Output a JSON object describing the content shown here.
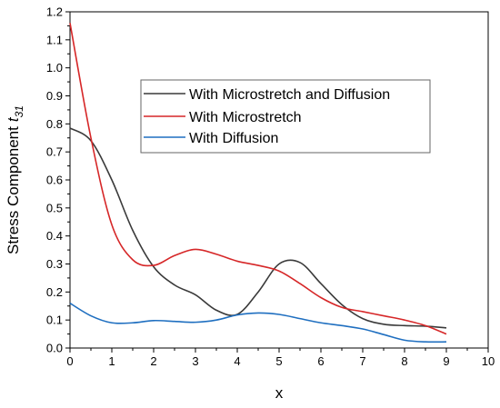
{
  "chart_data": {
    "type": "line",
    "title": "",
    "xlabel": "x",
    "ylabel": "Stress Component",
    "ylabel_symbol": "t",
    "ylabel_subscript": "31",
    "xlim": [
      0,
      10
    ],
    "ylim": [
      0,
      1.2
    ],
    "xticks": [
      "0",
      "1",
      "2",
      "3",
      "4",
      "5",
      "6",
      "7",
      "8",
      "9",
      "10"
    ],
    "yticks": [
      "0.0",
      "0.1",
      "0.2",
      "0.3",
      "0.4",
      "0.5",
      "0.6",
      "0.7",
      "0.8",
      "0.9",
      "1.0",
      "1.1",
      "1.2"
    ],
    "grid": false,
    "legend_position": "upper-right-center",
    "series": [
      {
        "name": "With Microstretch and Diffusion",
        "color": "#3a3a3a",
        "x": [
          0,
          0.5,
          1,
          1.5,
          2,
          2.5,
          3,
          3.5,
          4,
          4.5,
          5,
          5.5,
          6,
          6.5,
          7,
          7.5,
          8,
          8.5,
          9
        ],
        "y": [
          0.785,
          0.74,
          0.6,
          0.42,
          0.29,
          0.225,
          0.19,
          0.135,
          0.12,
          0.2,
          0.3,
          0.305,
          0.23,
          0.155,
          0.105,
          0.085,
          0.08,
          0.078,
          0.072
        ]
      },
      {
        "name": "With Microstretch",
        "color": "#d62728",
        "x": [
          0,
          0.5,
          1,
          1.5,
          2,
          2.5,
          3,
          3.5,
          4,
          4.5,
          5,
          5.5,
          6,
          6.5,
          7,
          7.5,
          8,
          8.5,
          9
        ],
        "y": [
          1.16,
          0.75,
          0.44,
          0.315,
          0.295,
          0.33,
          0.352,
          0.335,
          0.31,
          0.295,
          0.275,
          0.23,
          0.18,
          0.145,
          0.13,
          0.115,
          0.1,
          0.08,
          0.05
        ]
      },
      {
        "name": "With Diffusion",
        "color": "#1f6fc0",
        "x": [
          0,
          0.5,
          1,
          1.5,
          2,
          2.5,
          3,
          3.5,
          4,
          4.5,
          5,
          5.5,
          6,
          6.5,
          7,
          7.5,
          8,
          8.5,
          9
        ],
        "y": [
          0.16,
          0.115,
          0.09,
          0.09,
          0.098,
          0.095,
          0.092,
          0.1,
          0.118,
          0.125,
          0.12,
          0.105,
          0.09,
          0.08,
          0.068,
          0.048,
          0.028,
          0.022,
          0.022
        ]
      }
    ]
  }
}
